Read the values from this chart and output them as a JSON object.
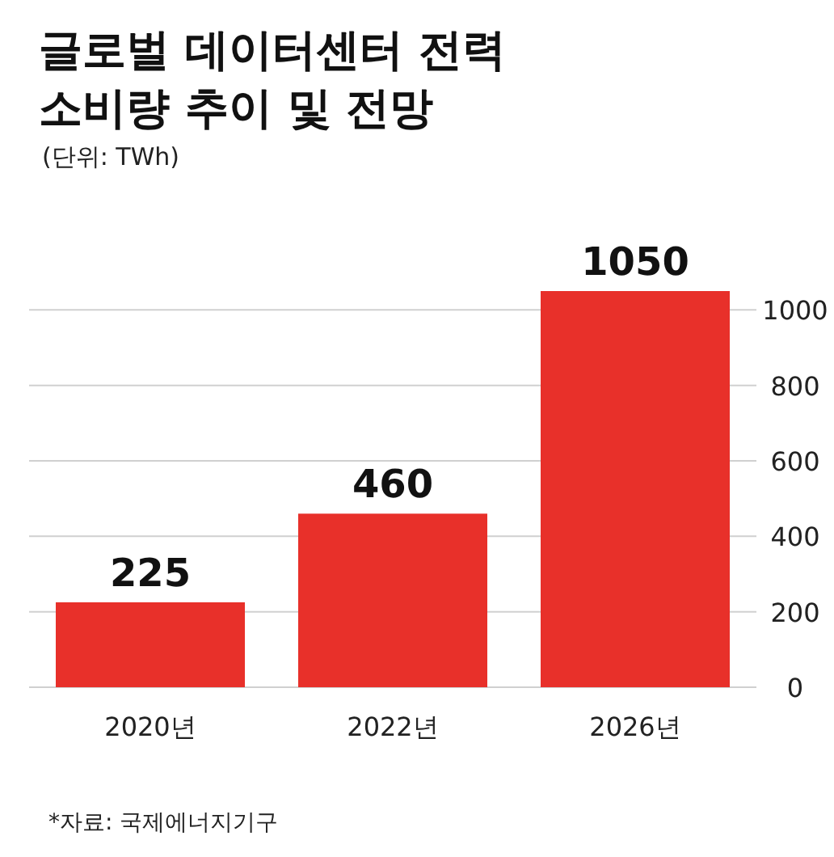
{
  "chart_data": {
    "type": "bar",
    "title": "글로벌 데이터센터 전력 소비량 추이 및 전망",
    "subtitle": "(단위: TWh)",
    "categories": [
      "2020년",
      "2022년",
      "2026년"
    ],
    "values": [
      225,
      460,
      1050
    ],
    "color": "#e8302a",
    "ylim": [
      0,
      1050
    ],
    "yticks": [
      0,
      200,
      400,
      600,
      800,
      1000
    ],
    "grid": "y",
    "data_labels": true,
    "annotations": [
      "*자료: 국제에너지기구"
    ]
  }
}
